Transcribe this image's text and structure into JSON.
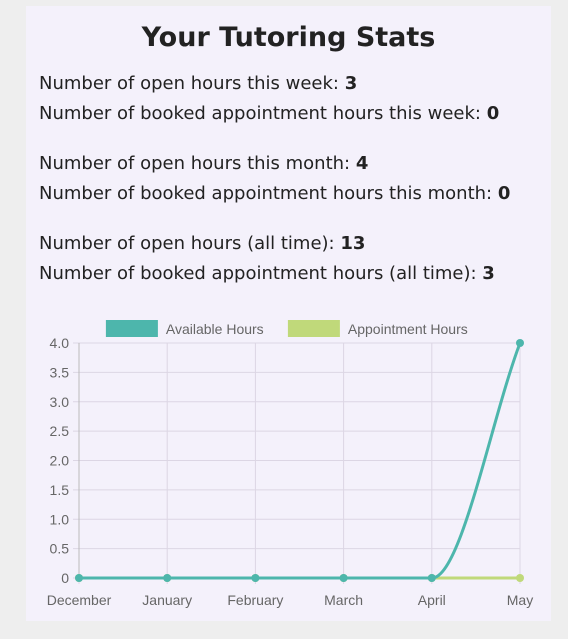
{
  "title": "Your Tutoring Stats",
  "stats": [
    [
      {
        "label": "Number of open hours this week: ",
        "value": "3"
      },
      {
        "label": "Number of booked appointment hours this week: ",
        "value": "0"
      }
    ],
    [
      {
        "label": "Number of open hours this month: ",
        "value": "4"
      },
      {
        "label": "Number of booked appointment hours this month: ",
        "value": "0"
      }
    ],
    [
      {
        "label": "Number of open hours (all time): ",
        "value": "13"
      },
      {
        "label": "Number of booked appointment hours (all time): ",
        "value": "3"
      }
    ]
  ],
  "chart_data": {
    "type": "line",
    "categories": [
      "December",
      "January",
      "February",
      "March",
      "April",
      "May"
    ],
    "series": [
      {
        "name": "Available Hours",
        "values": [
          0,
          0,
          0,
          0,
          0,
          4
        ],
        "color": "#4db6ac"
      },
      {
        "name": "Appointment Hours",
        "values": [
          0,
          0,
          0,
          0,
          0,
          0
        ],
        "color": "#c0d97a"
      }
    ],
    "ylim": [
      0,
      4
    ],
    "yticks": [
      "0",
      "0.5",
      "1.0",
      "1.5",
      "2.0",
      "2.5",
      "3.0",
      "3.5",
      "4.0"
    ],
    "grid": true,
    "legend": "top-center"
  }
}
